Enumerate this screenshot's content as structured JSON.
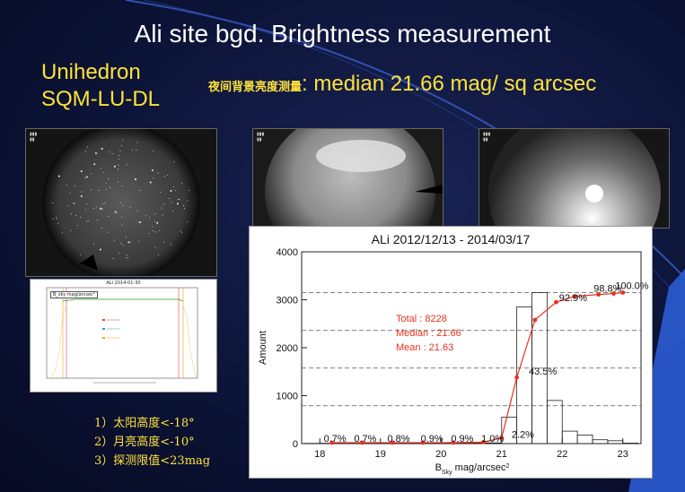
{
  "slide": {
    "title": "Ali site bgd. Brightness measurement",
    "instrument_line1": "Unihedron",
    "instrument_line2": "SQM-LU-DL",
    "brightness_cn": "夜间背景亮度测量",
    "brightness_value": ": median 21.66 mag/ sq arcsec",
    "conditions": [
      "1）太阳高度<-18°",
      "2）月亮高度<-10°",
      "3）探测限值<23mag"
    ]
  },
  "small_plot": {
    "title": "ALi 2014-01-30",
    "legend": "B_sky mag/arcsec²"
  },
  "chart_data": {
    "type": "bar",
    "title": "ALi 2012/12/13 - 2014/03/17",
    "xlabel_main": "B",
    "xlabel_sub": "Sky",
    "xlabel_rest": " mag/arcsec",
    "xlabel_sup": "2",
    "ylabel": "Amount",
    "xlim": [
      17.7,
      23.3
    ],
    "ylim": [
      0,
      4000
    ],
    "x_ticks": [
      18,
      19,
      20,
      21,
      22,
      23
    ],
    "y_ticks": [
      0,
      1000,
      2000,
      3000,
      4000
    ],
    "bin_width": 0.25,
    "histogram": [
      {
        "x": 17.75,
        "y": 5
      },
      {
        "x": 18.0,
        "y": 8
      },
      {
        "x": 18.25,
        "y": 10
      },
      {
        "x": 18.5,
        "y": 10
      },
      {
        "x": 18.75,
        "y": 10
      },
      {
        "x": 19.0,
        "y": 10
      },
      {
        "x": 19.25,
        "y": 10
      },
      {
        "x": 19.5,
        "y": 10
      },
      {
        "x": 19.75,
        "y": 10
      },
      {
        "x": 20.0,
        "y": 10
      },
      {
        "x": 20.25,
        "y": 10
      },
      {
        "x": 20.5,
        "y": 10
      },
      {
        "x": 20.75,
        "y": 15
      },
      {
        "x": 21.0,
        "y": 550
      },
      {
        "x": 21.25,
        "y": 2850
      },
      {
        "x": 21.5,
        "y": 3150
      },
      {
        "x": 21.75,
        "y": 900
      },
      {
        "x": 22.0,
        "y": 260
      },
      {
        "x": 22.25,
        "y": 180
      },
      {
        "x": 22.5,
        "y": 80
      },
      {
        "x": 22.75,
        "y": 60
      },
      {
        "x": 23.0,
        "y": 10
      }
    ],
    "cumulative": [
      {
        "x": 18.2,
        "y": 20
      },
      {
        "x": 18.7,
        "y": 20
      },
      {
        "x": 19.2,
        "y": 20
      },
      {
        "x": 19.7,
        "y": 20
      },
      {
        "x": 20.2,
        "y": 20
      },
      {
        "x": 20.7,
        "y": 30
      },
      {
        "x": 21.0,
        "y": 120
      },
      {
        "x": 21.25,
        "y": 1380
      },
      {
        "x": 21.55,
        "y": 2580
      },
      {
        "x": 21.9,
        "y": 2950
      },
      {
        "x": 22.2,
        "y": 3070
      },
      {
        "x": 22.6,
        "y": 3110
      },
      {
        "x": 22.85,
        "y": 3130
      },
      {
        "x": 23.0,
        "y": 3150
      }
    ],
    "cumulative_labels": [
      {
        "text": "0.7%",
        "x": 18.25,
        "y": 20
      },
      {
        "text": "0.7%",
        "x": 18.75,
        "y": 20
      },
      {
        "text": "0.8%",
        "x": 19.3,
        "y": 20
      },
      {
        "text": "0.9%",
        "x": 19.85,
        "y": 20
      },
      {
        "text": "0.9%",
        "x": 20.35,
        "y": 20
      },
      {
        "text": "1.0%",
        "x": 20.85,
        "y": 20
      },
      {
        "text": "2.2%",
        "x": 21.35,
        "y": 100
      },
      {
        "text": "43.5%",
        "x": 21.68,
        "y": 1420
      },
      {
        "text": "92.9%",
        "x": 22.18,
        "y": 2950
      },
      {
        "text": "98.8%",
        "x": 22.75,
        "y": 3150
      },
      {
        "text": "100.0%",
        "x": 23.15,
        "y": 3210
      }
    ],
    "dashed_levels": [
      3150,
      2360,
      1575,
      790
    ],
    "stats": [
      "Total :   8228",
      "Median : 21.66",
      "Mean : 21.63"
    ],
    "colors": {
      "cumulative": "#e8321e",
      "bars": "#222222",
      "stats": "#e8321e"
    }
  }
}
